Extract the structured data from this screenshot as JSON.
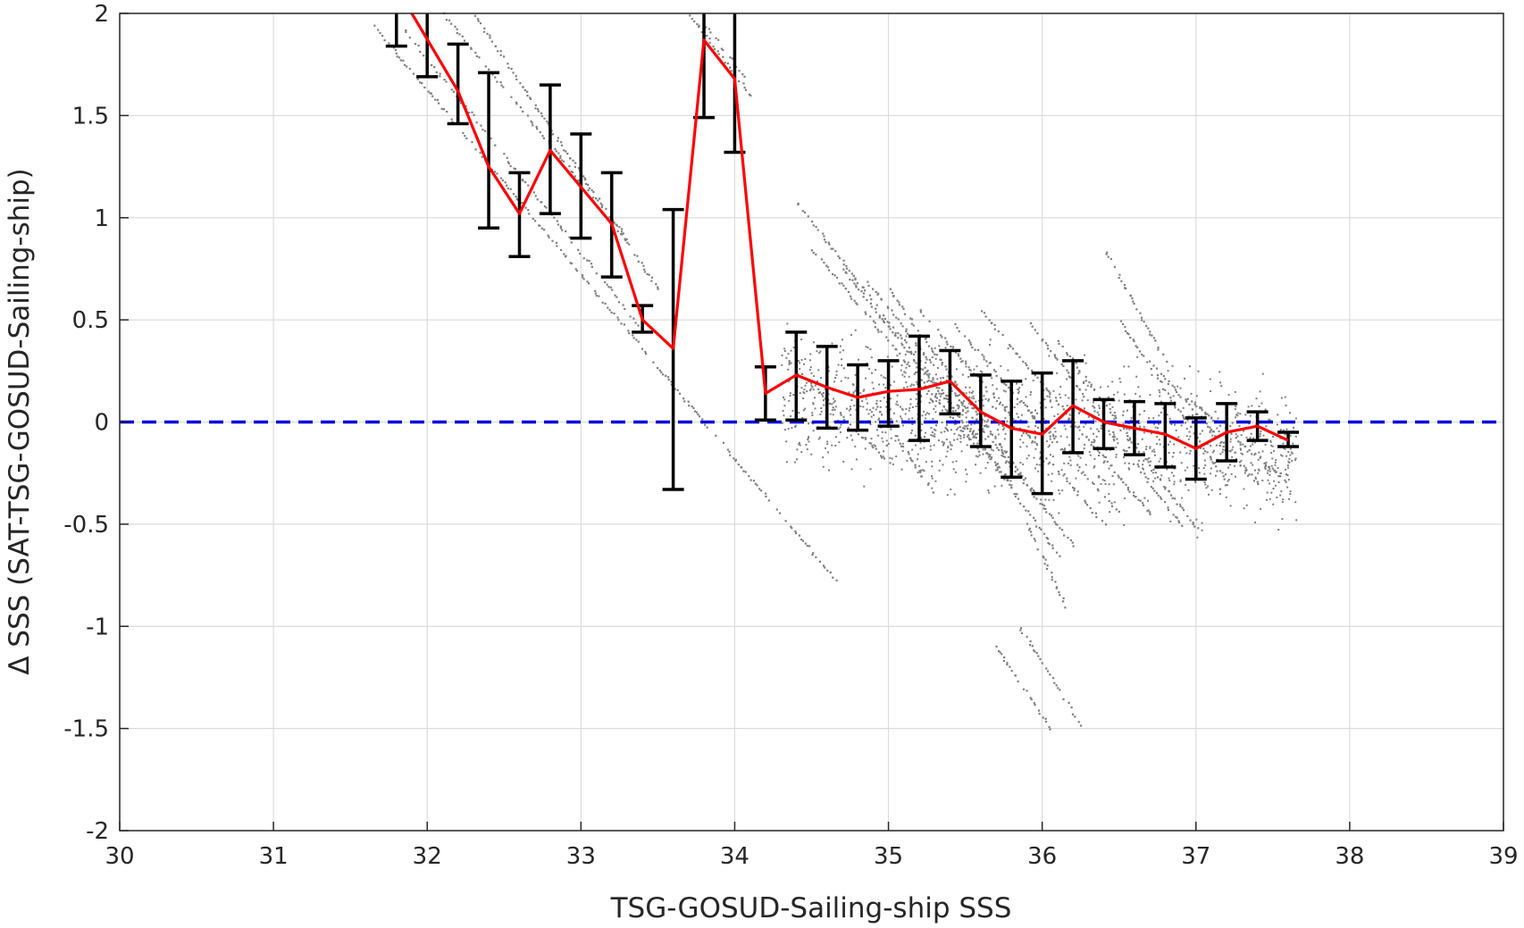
{
  "chart_data": {
    "type": "line",
    "xlabel": "TSG-GOSUD-Sailing-ship SSS",
    "ylabel": "Δ SSS (SAT-TSG-GOSUD-Sailing-ship)",
    "xlim": [
      30,
      39
    ],
    "ylim": [
      -2,
      2
    ],
    "x_ticks": [
      30,
      31,
      32,
      33,
      34,
      35,
      36,
      37,
      38,
      39
    ],
    "y_ticks": [
      2,
      1.5,
      1,
      0.5,
      0,
      -0.5,
      -1,
      -1.5,
      -2
    ],
    "x_tick_labels": [
      "30",
      "31",
      "32",
      "33",
      "34",
      "35",
      "36",
      "37",
      "38",
      "39"
    ],
    "y_tick_labels": [
      "2",
      "1.5",
      "1",
      "0.5",
      "0",
      "-0.5",
      "-1",
      "-1.5",
      "-2"
    ],
    "grid": true,
    "colors": {
      "mean_line": "#ff0000",
      "error_bars": "#000000",
      "zero_line": "#0000dd",
      "scatter": "#808080"
    },
    "mean_series": {
      "x": [
        31.9,
        32.2,
        32.4,
        32.6,
        32.8,
        33.0,
        33.2,
        33.4,
        33.6,
        33.8,
        34.0,
        34.2,
        34.4,
        34.6,
        34.8,
        35.0,
        35.2,
        35.4,
        35.6,
        35.8,
        36.0,
        36.2,
        36.4,
        36.6,
        36.8,
        37.0,
        37.2,
        37.4,
        37.6
      ],
      "y": [
        2.0,
        1.62,
        1.25,
        1.02,
        1.33,
        1.15,
        0.97,
        0.5,
        0.36,
        1.87,
        1.68,
        0.14,
        0.23,
        0.17,
        0.12,
        0.15,
        0.16,
        0.2,
        0.05,
        -0.03,
        -0.06,
        0.08,
        0.0,
        -0.03,
        -0.06,
        -0.13,
        -0.05,
        -0.02,
        -0.09
      ]
    },
    "error_bars": [
      {
        "x": 31.8,
        "low": 1.84,
        "high": 2.0
      },
      {
        "x": 32.0,
        "low": 1.69,
        "high": 2.0
      },
      {
        "x": 32.2,
        "low": 1.46,
        "high": 1.85
      },
      {
        "x": 32.4,
        "low": 0.95,
        "high": 1.71
      },
      {
        "x": 32.6,
        "low": 0.81,
        "high": 1.22
      },
      {
        "x": 32.8,
        "low": 1.02,
        "high": 1.65
      },
      {
        "x": 33.0,
        "low": 0.9,
        "high": 1.41
      },
      {
        "x": 33.2,
        "low": 0.71,
        "high": 1.22
      },
      {
        "x": 33.4,
        "low": 0.44,
        "high": 0.57
      },
      {
        "x": 33.6,
        "low": -0.33,
        "high": 1.04
      },
      {
        "x": 33.8,
        "low": 1.49,
        "high": 2.0
      },
      {
        "x": 34.0,
        "low": 1.32,
        "high": 2.0
      },
      {
        "x": 34.2,
        "low": 0.01,
        "high": 0.27
      },
      {
        "x": 34.4,
        "low": 0.01,
        "high": 0.44
      },
      {
        "x": 34.6,
        "low": -0.03,
        "high": 0.37
      },
      {
        "x": 34.8,
        "low": -0.04,
        "high": 0.28
      },
      {
        "x": 35.0,
        "low": -0.02,
        "high": 0.3
      },
      {
        "x": 35.2,
        "low": -0.09,
        "high": 0.42
      },
      {
        "x": 35.4,
        "low": 0.04,
        "high": 0.35
      },
      {
        "x": 35.6,
        "low": -0.12,
        "high": 0.23
      },
      {
        "x": 35.8,
        "low": -0.27,
        "high": 0.2
      },
      {
        "x": 36.0,
        "low": -0.35,
        "high": 0.24
      },
      {
        "x": 36.2,
        "low": -0.15,
        "high": 0.3
      },
      {
        "x": 36.4,
        "low": -0.13,
        "high": 0.11
      },
      {
        "x": 36.6,
        "low": -0.16,
        "high": 0.1
      },
      {
        "x": 36.8,
        "low": -0.22,
        "high": 0.09
      },
      {
        "x": 37.0,
        "low": -0.28,
        "high": 0.02
      },
      {
        "x": 37.2,
        "low": -0.19,
        "high": 0.09
      },
      {
        "x": 37.4,
        "low": -0.09,
        "high": 0.05
      },
      {
        "x": 37.6,
        "low": -0.12,
        "high": -0.05
      }
    ],
    "zero_line_y": 0,
    "scatter_streaks": [
      {
        "x0": 31.65,
        "y0": 1.94,
        "x1": 34.65,
        "y1": -0.77
      },
      {
        "x0": 31.85,
        "y0": 1.92,
        "x1": 33.4,
        "y1": 0.45
      },
      {
        "x0": 32.1,
        "y0": 2.0,
        "x1": 33.3,
        "y1": 0.9
      },
      {
        "x0": 32.3,
        "y0": 2.0,
        "x1": 33.5,
        "y1": 0.65
      },
      {
        "x0": 33.7,
        "y0": 2.0,
        "x1": 34.1,
        "y1": 1.6
      },
      {
        "x0": 33.8,
        "y0": 1.95,
        "x1": 34.05,
        "y1": 1.7
      },
      {
        "x0": 34.4,
        "y0": 1.08,
        "x1": 35.4,
        "y1": 0.1
      },
      {
        "x0": 34.5,
        "y0": 0.85,
        "x1": 35.6,
        "y1": -0.15
      },
      {
        "x0": 34.7,
        "y0": 0.75,
        "x1": 35.8,
        "y1": -0.3
      },
      {
        "x0": 34.85,
        "y0": 0.7,
        "x1": 36.2,
        "y1": -0.6
      },
      {
        "x0": 35.0,
        "y0": 0.65,
        "x1": 36.0,
        "y1": -0.4
      },
      {
        "x0": 35.2,
        "y0": 0.55,
        "x1": 36.4,
        "y1": -0.5
      },
      {
        "x0": 35.4,
        "y0": 0.5,
        "x1": 36.5,
        "y1": -0.45
      },
      {
        "x0": 35.6,
        "y0": 0.55,
        "x1": 36.7,
        "y1": -0.45
      },
      {
        "x0": 35.9,
        "y0": 0.5,
        "x1": 36.9,
        "y1": -0.5
      },
      {
        "x0": 36.1,
        "y0": 0.4,
        "x1": 37.0,
        "y1": -0.52
      },
      {
        "x0": 36.4,
        "y0": 0.85,
        "x1": 36.8,
        "y1": 0.3
      },
      {
        "x0": 36.5,
        "y0": 0.5,
        "x1": 37.2,
        "y1": -0.3
      },
      {
        "x0": 36.7,
        "y0": 0.3,
        "x1": 37.4,
        "y1": -0.3
      },
      {
        "x0": 36.9,
        "y0": 0.15,
        "x1": 37.6,
        "y1": -0.3
      },
      {
        "x0": 34.35,
        "y0": 0.3,
        "x1": 35.0,
        "y1": -0.2
      },
      {
        "x0": 34.9,
        "y0": 0.1,
        "x1": 35.3,
        "y1": -0.35
      },
      {
        "x0": 35.5,
        "y0": 0.0,
        "x1": 36.1,
        "y1": -0.65
      },
      {
        "x0": 35.9,
        "y0": -0.5,
        "x1": 36.15,
        "y1": -0.9
      },
      {
        "x0": 35.85,
        "y0": -1.0,
        "x1": 36.25,
        "y1": -1.48
      },
      {
        "x0": 35.7,
        "y0": -1.1,
        "x1": 36.05,
        "y1": -1.5
      }
    ]
  }
}
